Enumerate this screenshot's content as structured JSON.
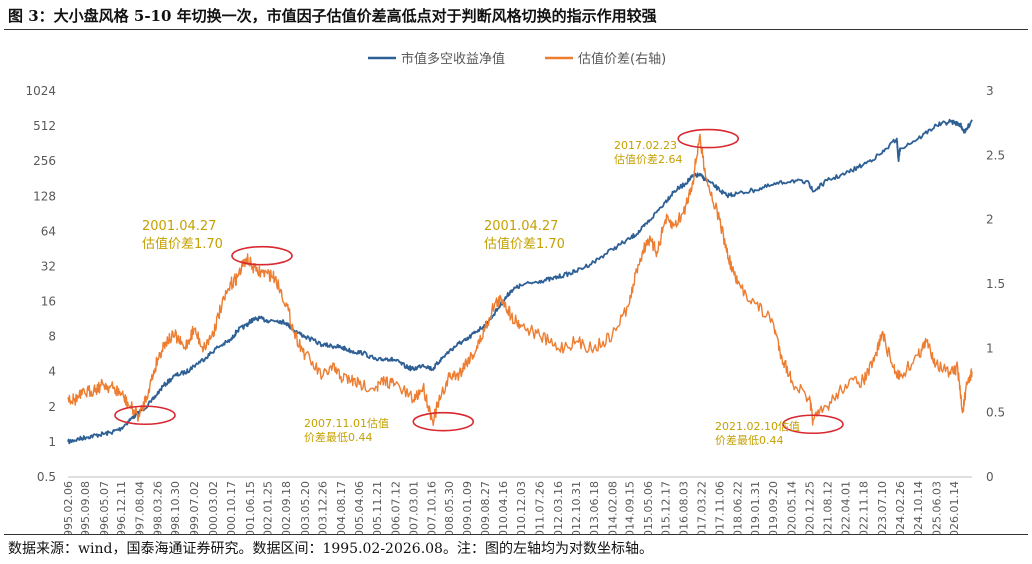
{
  "figure": {
    "title": "图 3：大小盘风格 5-10 年切换一次，市值因子估值价差高低点对于判断风格切换的指示作用较强",
    "source": "数据来源：wind，国泰海通证券研究。数据区间：1995.02-2026.08。注：图的左轴均为对数坐标轴。"
  },
  "colors": {
    "nav": "#2E6096",
    "spread": "#ED7D31",
    "annotation": "#C5A000",
    "circle": "#D9282F",
    "axis_text": "#595959"
  },
  "chart_data": {
    "type": "line",
    "title": "",
    "legend_position": "top-center",
    "grid": false,
    "x_axis": {
      "label": "",
      "range": [
        "1995-02-06",
        "2026-08-31"
      ],
      "ticks": [
        "1995.02.06",
        "1995.09.08",
        "1996.05.07",
        "1996.12.11",
        "1997.08.04",
        "1998.03.26",
        "1998.10.30",
        "1999.07.02",
        "2000.03.02",
        "2000.10.17",
        "2001.06.15",
        "2002.01.25",
        "2002.09.18",
        "2003.05.20",
        "2003.12.26",
        "2004.08.17",
        "2005.04.06",
        "2005.11.21",
        "2006.07.12",
        "2007.03.01",
        "2007.10.16",
        "2008.05.30",
        "2009.01.09",
        "2009.08.27",
        "2010.04.16",
        "2010.12.03",
        "2011.07.26",
        "2012.03.16",
        "2012.10.31",
        "2013.06.18",
        "2014.02.08",
        "2014.09.15",
        "2015.05.06",
        "2015.12.17",
        "2016.08.03",
        "2017.03.22",
        "2017.11.06",
        "2018.06.22",
        "2019.01.31",
        "2019.09.20",
        "2020.05.14",
        "2020.12.25",
        "2021.08.12",
        "2022.04.01",
        "2022.11.18",
        "2023.07.10",
        "2024.02.26",
        "2024.10.14",
        "2025.06.03",
        "2026.01.14"
      ]
    },
    "y_left": {
      "label": "",
      "scale": "log2",
      "range": [
        0.5,
        1024
      ],
      "ticks": [
        "0.5",
        "1",
        "2",
        "4",
        "8",
        "16",
        "32",
        "64",
        "128",
        "256",
        "512",
        "1024"
      ]
    },
    "y_right": {
      "label": "",
      "scale": "linear",
      "range": [
        0,
        3
      ],
      "ticks": [
        "0",
        "0.5",
        "1",
        "1.5",
        "2",
        "2.5",
        "3"
      ]
    },
    "series": [
      {
        "name": "市值多空收益净值",
        "axis": "left",
        "color": "#2E6096",
        "points": [
          [
            "1995-02-06",
            1.0
          ],
          [
            "1995-06-01",
            1.05
          ],
          [
            "1995-10-01",
            1.1
          ],
          [
            "1996-03-01",
            1.15
          ],
          [
            "1996-08-01",
            1.2
          ],
          [
            "1996-12-11",
            1.3
          ],
          [
            "1997-05-01",
            1.6
          ],
          [
            "1997-08-04",
            1.8
          ],
          [
            "1998-01-01",
            2.2
          ],
          [
            "1998-06-01",
            3.0
          ],
          [
            "1998-10-30",
            3.7
          ],
          [
            "1999-04-01",
            4.0
          ],
          [
            "1999-07-02",
            4.5
          ],
          [
            "1999-12-01",
            5.3
          ],
          [
            "2000-05-01",
            6.5
          ],
          [
            "2000-10-17",
            7.5
          ],
          [
            "2001-01-01",
            9.0
          ],
          [
            "2001-04-27",
            10.0
          ],
          [
            "2001-07-01",
            11.0
          ],
          [
            "2001-10-01",
            11.5
          ],
          [
            "2002-01-25",
            11.0
          ],
          [
            "2002-06-01",
            11.0
          ],
          [
            "2002-09-18",
            10.5
          ],
          [
            "2003-01-01",
            9.0
          ],
          [
            "2003-05-20",
            8.0
          ],
          [
            "2003-12-26",
            6.8
          ],
          [
            "2004-06-01",
            6.6
          ],
          [
            "2004-08-17",
            6.5
          ],
          [
            "2005-01-01",
            6.0
          ],
          [
            "2005-06-01",
            5.8
          ],
          [
            "2005-11-21",
            5.0
          ],
          [
            "2006-04-01",
            5.2
          ],
          [
            "2006-07-12",
            5.0
          ],
          [
            "2006-12-01",
            4.4
          ],
          [
            "2007-03-01",
            4.2
          ],
          [
            "2007-07-01",
            4.6
          ],
          [
            "2007-11-01",
            4.2
          ],
          [
            "2008-02-01",
            5.0
          ],
          [
            "2008-05-30",
            6.0
          ],
          [
            "2008-10-01",
            7.0
          ],
          [
            "2009-01-09",
            7.5
          ],
          [
            "2009-05-01",
            8.8
          ],
          [
            "2009-08-27",
            10.0
          ],
          [
            "2009-12-01",
            12.0
          ],
          [
            "2010-04-16",
            16.0
          ],
          [
            "2010-08-01",
            20.0
          ],
          [
            "2010-12-03",
            22.0
          ],
          [
            "2011-07-26",
            24.0
          ],
          [
            "2012-01-01",
            25.0
          ],
          [
            "2012-06-01",
            27.0
          ],
          [
            "2012-10-31",
            29.0
          ],
          [
            "2013-06-18",
            35.0
          ],
          [
            "2014-02-08",
            45.0
          ],
          [
            "2014-09-15",
            55.0
          ],
          [
            "2015-02-01",
            65.0
          ],
          [
            "2015-06-01",
            80.0
          ],
          [
            "2015-12-17",
            115.0
          ],
          [
            "2016-04-01",
            140.0
          ],
          [
            "2016-08-03",
            160.0
          ],
          [
            "2016-12-01",
            190.0
          ],
          [
            "2017-02-23",
            195.0
          ],
          [
            "2017-06-01",
            175.0
          ],
          [
            "2017-11-06",
            145.0
          ],
          [
            "2018-02-01",
            130.0
          ],
          [
            "2018-06-22",
            135.0
          ],
          [
            "2019-01-31",
            145.0
          ],
          [
            "2019-09-20",
            160.0
          ],
          [
            "2020-05-14",
            175.0
          ],
          [
            "2020-12-25",
            165.0
          ],
          [
            "2021-02-10",
            140.0
          ],
          [
            "2021-08-12",
            175.0
          ],
          [
            "2022-04-01",
            200.0
          ],
          [
            "2022-11-18",
            240.0
          ],
          [
            "2023-07-10",
            300.0
          ],
          [
            "2024-01-15",
            400.0
          ],
          [
            "2024-02-05",
            260.0
          ],
          [
            "2024-02-26",
            330.0
          ],
          [
            "2024-10-14",
            400.0
          ],
          [
            "2025-06-03",
            520.0
          ],
          [
            "2025-12-01",
            560.0
          ],
          [
            "2026-04-01",
            530.0
          ],
          [
            "2026-06-01",
            450.0
          ],
          [
            "2026-08-31",
            580.0
          ]
        ]
      },
      {
        "name": "估值价差(右轴)",
        "axis": "right",
        "color": "#ED7D31",
        "points": [
          [
            "1995-02-06",
            0.62
          ],
          [
            "1995-05-01",
            0.6
          ],
          [
            "1995-09-08",
            0.65
          ],
          [
            "1996-01-01",
            0.68
          ],
          [
            "1996-05-07",
            0.72
          ],
          [
            "1996-09-01",
            0.69
          ],
          [
            "1996-12-11",
            0.65
          ],
          [
            "1997-04-01",
            0.55
          ],
          [
            "1997-08-04",
            0.47
          ],
          [
            "1997-12-01",
            0.68
          ],
          [
            "1998-03-26",
            0.92
          ],
          [
            "1998-07-01",
            1.05
          ],
          [
            "1998-10-30",
            1.1
          ],
          [
            "1999-03-01",
            1.0
          ],
          [
            "1999-07-02",
            1.15
          ],
          [
            "1999-11-01",
            1.0
          ],
          [
            "2000-03-02",
            1.12
          ],
          [
            "2000-06-01",
            1.3
          ],
          [
            "2000-10-17",
            1.5
          ],
          [
            "2001-01-01",
            1.55
          ],
          [
            "2001-04-27",
            1.7
          ],
          [
            "2001-09-01",
            1.6
          ],
          [
            "2002-01-25",
            1.58
          ],
          [
            "2002-05-01",
            1.55
          ],
          [
            "2002-09-18",
            1.35
          ],
          [
            "2003-01-01",
            1.12
          ],
          [
            "2003-05-20",
            0.95
          ],
          [
            "2003-12-26",
            0.78
          ],
          [
            "2004-05-01",
            0.85
          ],
          [
            "2004-08-17",
            0.78
          ],
          [
            "2005-01-01",
            0.75
          ],
          [
            "2005-04-06",
            0.72
          ],
          [
            "2005-11-21",
            0.7
          ],
          [
            "2006-03-01",
            0.75
          ],
          [
            "2006-07-12",
            0.72
          ],
          [
            "2007-03-01",
            0.6
          ],
          [
            "2007-07-01",
            0.7
          ],
          [
            "2007-11-01",
            0.44
          ],
          [
            "2008-02-01",
            0.6
          ],
          [
            "2008-05-30",
            0.78
          ],
          [
            "2008-10-01",
            0.8
          ],
          [
            "2009-01-09",
            0.9
          ],
          [
            "2009-05-01",
            0.98
          ],
          [
            "2009-08-27",
            1.15
          ],
          [
            "2010-01-01",
            1.35
          ],
          [
            "2010-04-16",
            1.38
          ],
          [
            "2010-08-01",
            1.25
          ],
          [
            "2010-12-03",
            1.18
          ],
          [
            "2011-07-26",
            1.1
          ],
          [
            "2012-03-16",
            1.0
          ],
          [
            "2012-10-31",
            1.05
          ],
          [
            "2013-06-18",
            1.0
          ],
          [
            "2014-02-08",
            1.1
          ],
          [
            "2014-09-15",
            1.35
          ],
          [
            "2015-01-01",
            1.65
          ],
          [
            "2015-05-06",
            1.85
          ],
          [
            "2015-09-01",
            1.75
          ],
          [
            "2015-12-17",
            2.0
          ],
          [
            "2016-04-01",
            1.95
          ],
          [
            "2016-08-03",
            2.05
          ],
          [
            "2016-12-01",
            2.3
          ],
          [
            "2017-02-23",
            2.64
          ],
          [
            "2017-06-01",
            2.3
          ],
          [
            "2017-11-06",
            2.0
          ],
          [
            "2018-03-01",
            1.7
          ],
          [
            "2018-06-22",
            1.5
          ],
          [
            "2019-01-31",
            1.35
          ],
          [
            "2019-09-20",
            1.2
          ],
          [
            "2020-01-01",
            0.95
          ],
          [
            "2020-05-14",
            0.75
          ],
          [
            "2020-12-25",
            0.6
          ],
          [
            "2021-02-10",
            0.44
          ],
          [
            "2021-08-12",
            0.55
          ],
          [
            "2022-04-01",
            0.72
          ],
          [
            "2022-11-18",
            0.75
          ],
          [
            "2023-04-01",
            0.9
          ],
          [
            "2023-07-10",
            1.12
          ],
          [
            "2023-12-01",
            0.85
          ],
          [
            "2024-02-26",
            0.78
          ],
          [
            "2024-10-14",
            0.95
          ],
          [
            "2025-02-01",
            1.05
          ],
          [
            "2025-06-03",
            0.88
          ],
          [
            "2025-12-01",
            0.8
          ],
          [
            "2026-03-01",
            0.85
          ],
          [
            "2026-05-01",
            0.5
          ],
          [
            "2026-07-01",
            0.72
          ],
          [
            "2026-08-31",
            0.82
          ]
        ]
      }
    ],
    "annotations": [
      {
        "date": "2001-04-27",
        "line1": "2001.04.27",
        "line2": "估值价差1.70",
        "kind": "high"
      },
      {
        "date": "2007-11-01",
        "line1": "2007.11.01估值",
        "line2": "价差最低0.44",
        "kind": "low"
      },
      {
        "date": "2010-04-16",
        "line1": "2001.04.27",
        "line2": "估值价差1.70",
        "kind": "high"
      },
      {
        "date": "2017-02-23",
        "line1": "2017.02.23",
        "line2": "估值价差2.64",
        "kind": "high"
      },
      {
        "date": "2021-02-10",
        "line1": "2021.02.10估值",
        "line2": "价差最低0.44",
        "kind": "low"
      }
    ],
    "highlights": [
      {
        "date": "1997-10-15",
        "value": 0.48,
        "axis": "right"
      },
      {
        "date": "2001-11-15",
        "value": 1.72,
        "axis": "right"
      },
      {
        "date": "2008-03-15",
        "value": 0.43,
        "axis": "right"
      },
      {
        "date": "2017-06-15",
        "value": 2.63,
        "axis": "right"
      },
      {
        "date": "2021-02-10",
        "value": 0.41,
        "axis": "right"
      }
    ]
  }
}
